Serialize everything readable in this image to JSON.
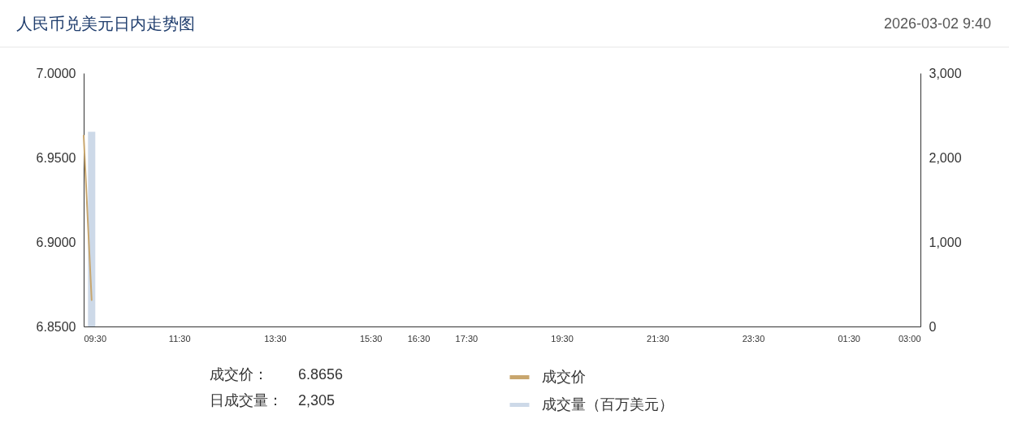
{
  "chart_data": {
    "type": "line",
    "title": "人民币兑美元日内走势图",
    "subtitle": "2026-03-02 9:40",
    "annotations": [
      "成交价：",
      "6.8656",
      "日成交量：",
      "2,305"
    ],
    "xlim": [
      "2026-03-02T09:30",
      "2026-03-03T03:00"
    ],
    "xticks": [
      {
        "value": "2026-03-02T09:30",
        "label": "09:30"
      },
      {
        "value": "2026-03-02T11:30",
        "label": "11:30"
      },
      {
        "value": "2026-03-02T13:30",
        "label": "13:30"
      },
      {
        "value": "2026-03-02T15:30",
        "label": "15:30"
      },
      {
        "value": "2026-03-02T16:30",
        "label": "16:30"
      },
      {
        "value": "2026-03-02T17:30",
        "label": "17:30"
      },
      {
        "value": "2026-03-02T19:30",
        "label": "19:30"
      },
      {
        "value": "2026-03-02T21:30",
        "label": "21:30"
      },
      {
        "value": "2026-03-02T23:30",
        "label": "23:30"
      },
      {
        "value": "2026-03-03T01:30",
        "label": "01:30"
      },
      {
        "value": "2026-03-03T03:00",
        "label": "03:00"
      }
    ],
    "ylim": [
      6.85,
      7.0
    ],
    "yticks": [
      {
        "value": 6.85,
        "label": "6.8500"
      },
      {
        "value": 6.9,
        "label": "6.9000"
      },
      {
        "value": 6.95,
        "label": "6.9500"
      },
      {
        "value": 7.0,
        "label": "7.0000"
      }
    ],
    "y2lim": [
      0,
      3000
    ],
    "y2ticks": [
      0,
      {
        "value": 1000,
        "label": "1,000"
      },
      {
        "value": 2000,
        "label": "2,000"
      },
      {
        "value": 3000,
        "label": "3,000"
      }
    ],
    "grid": false,
    "legend": "bottom",
    "series": [
      {
        "name": "成交价",
        "color": "#c8a66e",
        "x": [
          "2026-03-02T09:30",
          "2026-03-02T09:40"
        ],
        "values": [
          6.963,
          6.8656
        ]
      },
      {
        "name": "成交量（百万美元）",
        "type": "bar",
        "axis": "y2",
        "color": "#cdd9e8",
        "x": [
          "2026-03-02T09:40"
        ],
        "values": [
          2305
        ]
      }
    ]
  }
}
